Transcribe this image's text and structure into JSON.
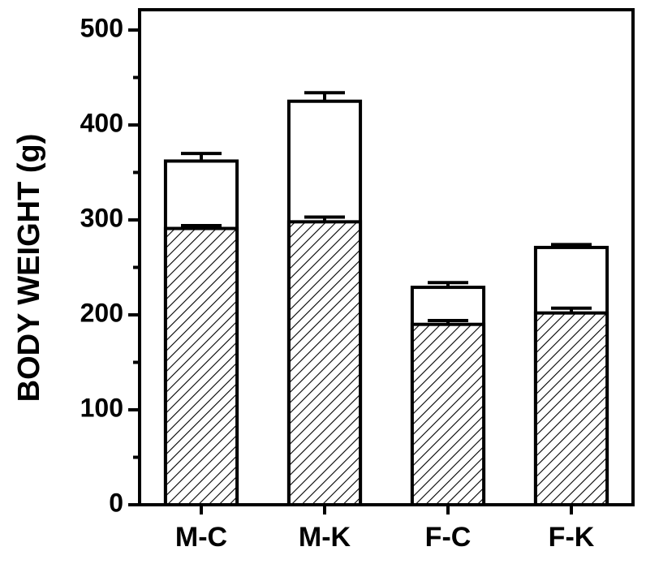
{
  "chart_data": {
    "type": "bar",
    "overlap": true,
    "y_label": "BODY WEIGHT (g)",
    "categories": [
      "M-C",
      "M-K",
      "F-C",
      "F-K"
    ],
    "series": [
      {
        "color": "#ffffff",
        "pattern": "none",
        "values": [
          362,
          425,
          229,
          271
        ],
        "errors": [
          8,
          9,
          5,
          3
        ]
      },
      {
        "color": "#ffffff",
        "pattern": "hatch",
        "values": [
          291,
          298,
          190,
          202
        ],
        "errors": [
          3,
          5,
          4,
          5
        ]
      }
    ],
    "ylim": [
      0,
      500
    ],
    "yticks": [
      0,
      100,
      200,
      300,
      400,
      500
    ],
    "yminorticks": [
      50,
      150,
      250,
      350,
      450
    ],
    "frame": true
  }
}
